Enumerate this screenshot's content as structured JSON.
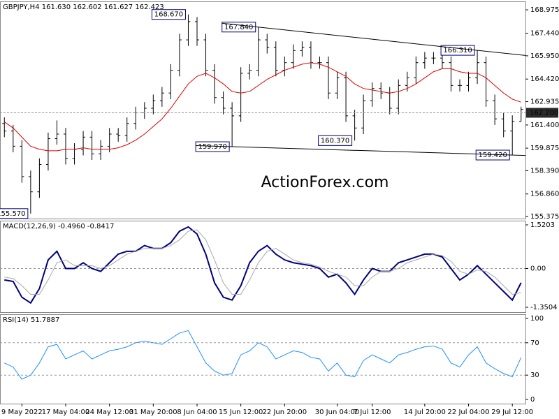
{
  "chart_data": [
    {
      "type": "ohlc",
      "title": "GBPJPY,H4  161.630 162.602 161.627 162.423",
      "watermark": "ActionForex.com",
      "categories": [
        null,
        null,
        "9 May 2022",
        null,
        null,
        null,
        null,
        "17 May 04:00",
        null,
        null,
        null,
        null,
        "24 May 12:00",
        null,
        null,
        null,
        null,
        "31 May 20:00",
        null,
        null,
        null,
        null,
        "8 Jun 04:00",
        null,
        null,
        null,
        null,
        "15 Jun 12:00",
        null,
        null,
        null,
        null,
        "22 Jun 20:00",
        null,
        null,
        null,
        null,
        null,
        "30 Jun 04:00",
        null,
        null,
        null,
        "7 Jul 12:00",
        null,
        null,
        null,
        null,
        null,
        "14 Jul 20:00",
        null,
        null,
        null,
        null,
        "22 Jul 04:00",
        null,
        null,
        null,
        null,
        "29 Jul 12:00",
        null
      ],
      "open": [
        161.5,
        161.0,
        160.0,
        158.0,
        157.0,
        158.8,
        160.5,
        160.8,
        159.2,
        159.8,
        160.6,
        159.5,
        160.0,
        160.8,
        160.7,
        161.5,
        162.2,
        162.5,
        163.0,
        163.5,
        165.0,
        167.0,
        168.2,
        167.0,
        165.0,
        163.2,
        162.5,
        162.0,
        164.8,
        165.0,
        167.0,
        166.5,
        165.0,
        165.5,
        166.3,
        166.5,
        165.5,
        165.5,
        163.5,
        164.5,
        162.0,
        161.2,
        163.0,
        163.8,
        163.5,
        162.5,
        164.0,
        164.5,
        165.5,
        165.8,
        165.8,
        165.5,
        164.0,
        164.0,
        164.5,
        165.5,
        163.0,
        161.8,
        161.0,
        161.63
      ],
      "high": [
        161.9,
        161.4,
        160.4,
        158.4,
        159.2,
        160.9,
        161.7,
        161.2,
        160.2,
        161.0,
        161.0,
        160.4,
        161.2,
        161.2,
        161.9,
        162.6,
        162.9,
        163.4,
        163.9,
        165.4,
        167.4,
        168.67,
        168.5,
        167.4,
        165.4,
        163.6,
        162.9,
        165.2,
        165.4,
        167.84,
        167.4,
        166.9,
        165.9,
        166.7,
        166.9,
        166.9,
        165.9,
        165.9,
        164.9,
        164.9,
        162.4,
        163.4,
        164.2,
        164.2,
        163.9,
        164.4,
        164.9,
        165.9,
        166.2,
        166.2,
        166.2,
        165.9,
        164.4,
        164.9,
        166.31,
        165.9,
        163.4,
        162.2,
        162.03,
        162.602
      ],
      "low": [
        160.6,
        159.6,
        157.6,
        155.57,
        156.6,
        158.4,
        160.1,
        158.8,
        158.8,
        159.4,
        159.1,
        159.1,
        159.6,
        160.3,
        160.3,
        161.1,
        161.8,
        162.1,
        162.6,
        163.1,
        164.6,
        166.6,
        166.6,
        164.6,
        162.8,
        162.1,
        159.97,
        161.6,
        164.4,
        164.6,
        166.1,
        164.6,
        164.6,
        165.1,
        165.9,
        165.1,
        165.1,
        163.1,
        163.1,
        161.6,
        160.37,
        160.8,
        162.6,
        163.1,
        162.1,
        162.1,
        163.6,
        164.1,
        165.1,
        165.4,
        165.1,
        163.6,
        163.6,
        163.6,
        164.1,
        162.6,
        161.4,
        160.6,
        159.42,
        161.627
      ],
      "close": [
        161.0,
        160.0,
        158.0,
        157.0,
        158.8,
        160.5,
        160.8,
        159.2,
        159.8,
        160.6,
        159.5,
        160.0,
        160.8,
        160.7,
        161.5,
        162.2,
        162.5,
        163.0,
        163.5,
        165.0,
        167.0,
        168.2,
        167.0,
        165.0,
        163.2,
        162.5,
        162.0,
        164.8,
        165.0,
        167.0,
        166.5,
        165.0,
        165.5,
        166.3,
        166.5,
        165.5,
        165.5,
        163.5,
        164.5,
        162.0,
        161.2,
        163.0,
        163.8,
        163.5,
        162.5,
        164.0,
        164.5,
        165.5,
        165.8,
        165.8,
        165.5,
        164.0,
        164.0,
        164.5,
        165.5,
        163.0,
        161.8,
        161.0,
        161.63,
        162.423
      ],
      "color": "#000000",
      "ma": {
        "color": "#e00000",
        "values": [
          161.6,
          161.2,
          160.6,
          160.0,
          159.8,
          159.7,
          159.7,
          159.8,
          159.8,
          159.9,
          159.8,
          159.8,
          159.8,
          159.9,
          160.1,
          160.4,
          160.8,
          161.3,
          161.8,
          162.5,
          163.3,
          164.1,
          164.6,
          164.8,
          164.5,
          164.1,
          163.6,
          163.5,
          163.6,
          164.0,
          164.4,
          164.7,
          165.0,
          165.2,
          165.4,
          165.5,
          165.4,
          165.2,
          164.9,
          164.6,
          164.1,
          163.8,
          163.7,
          163.6,
          163.5,
          163.6,
          163.8,
          164.1,
          164.5,
          164.9,
          165.1,
          165.1,
          164.9,
          164.8,
          164.8,
          164.5,
          164.0,
          163.5,
          163.1,
          162.9
        ]
      },
      "annotations": [
        {
          "value": 168.67,
          "label": "168.670"
        },
        {
          "value": 167.84,
          "label": "167.840"
        },
        {
          "value": 166.31,
          "label": "166.310"
        },
        {
          "value": 159.97,
          "label": "159.970"
        },
        {
          "value": 160.37,
          "label": "160.370"
        },
        {
          "value": 159.42,
          "label": "159.420"
        },
        {
          "value": 155.57,
          "label": "155.570"
        }
      ],
      "price_line": {
        "value": 162.2,
        "label": "162.200"
      },
      "ylim": [
        155.24,
        169.53
      ],
      "yticks": [
        168.975,
        {
          "value": 167.44,
          "label": "167.440"
        },
        {
          "value": 165.95,
          "label": "165.950"
        },
        {
          "value": 164.42,
          "label": "164.420"
        },
        162.935,
        {
          "value": 161.4,
          "label": "161.400"
        },
        159.875,
        {
          "value": 158.39,
          "label": "158.390"
        },
        {
          "value": 156.86,
          "label": "156.860"
        },
        155.375
      ]
    },
    {
      "type": "line",
      "title": "MACD(12,26,9) -0.4960 -0.8417",
      "series": [
        {
          "color": "#000080",
          "values": [
            -0.4,
            -0.45,
            -1.0,
            -1.2,
            -0.7,
            0.3,
            0.6,
            0.0,
            0.0,
            0.2,
            0.0,
            -0.1,
            0.2,
            0.5,
            0.6,
            0.6,
            0.8,
            0.7,
            0.7,
            0.9,
            1.3,
            1.45,
            1.2,
            0.5,
            -0.5,
            -1.0,
            -1.1,
            -0.6,
            0.2,
            0.6,
            0.8,
            0.5,
            0.3,
            0.2,
            0.15,
            0.1,
            0.0,
            -0.3,
            -0.2,
            -0.5,
            -0.9,
            -0.4,
            0.0,
            -0.1,
            -0.1,
            0.2,
            0.3,
            0.4,
            0.5,
            0.5,
            0.4,
            0.0,
            -0.4,
            -0.2,
            0.1,
            -0.2,
            -0.5,
            -0.8,
            -1.1,
            -0.496
          ]
        },
        {
          "color": "#a8a8a8",
          "values": [
            -0.3,
            -0.35,
            -0.6,
            -0.9,
            -0.9,
            -0.4,
            0.2,
            0.3,
            0.1,
            0.1,
            0.1,
            0.0,
            0.1,
            0.3,
            0.5,
            0.6,
            0.7,
            0.7,
            0.7,
            0.8,
            1.0,
            1.3,
            1.35,
            1.0,
            0.3,
            -0.5,
            -0.9,
            -0.9,
            -0.4,
            0.2,
            0.6,
            0.7,
            0.5,
            0.3,
            0.2,
            0.15,
            0.05,
            -0.1,
            -0.2,
            -0.3,
            -0.6,
            -0.6,
            -0.3,
            -0.1,
            -0.1,
            0.0,
            0.2,
            0.3,
            0.4,
            0.5,
            0.45,
            0.25,
            -0.1,
            -0.2,
            -0.05,
            -0.1,
            -0.3,
            -0.6,
            -0.9,
            -0.8417
          ]
        }
      ],
      "levels": [
        0
      ],
      "ylim": [
        -1.521,
        1.666
      ],
      "yticks": [
        1.5203,
        {
          "value": 0,
          "label": "0.00"
        },
        -1.3504
      ]
    },
    {
      "type": "line",
      "title": "RSI(14) 51.7887",
      "series": [
        {
          "color": "#1e90ff",
          "values": [
            45,
            40,
            25,
            30,
            45,
            65,
            68,
            50,
            55,
            60,
            50,
            55,
            60,
            62,
            65,
            70,
            72,
            70,
            68,
            75,
            82,
            85,
            65,
            45,
            35,
            30,
            32,
            55,
            60,
            70,
            65,
            50,
            55,
            60,
            58,
            52,
            50,
            35,
            45,
            30,
            28,
            48,
            55,
            50,
            45,
            55,
            58,
            62,
            65,
            66,
            62,
            45,
            40,
            55,
            65,
            45,
            38,
            32,
            28,
            51.7887
          ]
        }
      ],
      "levels": [
        70,
        30
      ],
      "ylim": [
        -5.2,
        105.2
      ],
      "yticks": [
        100,
        70,
        30,
        0
      ]
    }
  ]
}
